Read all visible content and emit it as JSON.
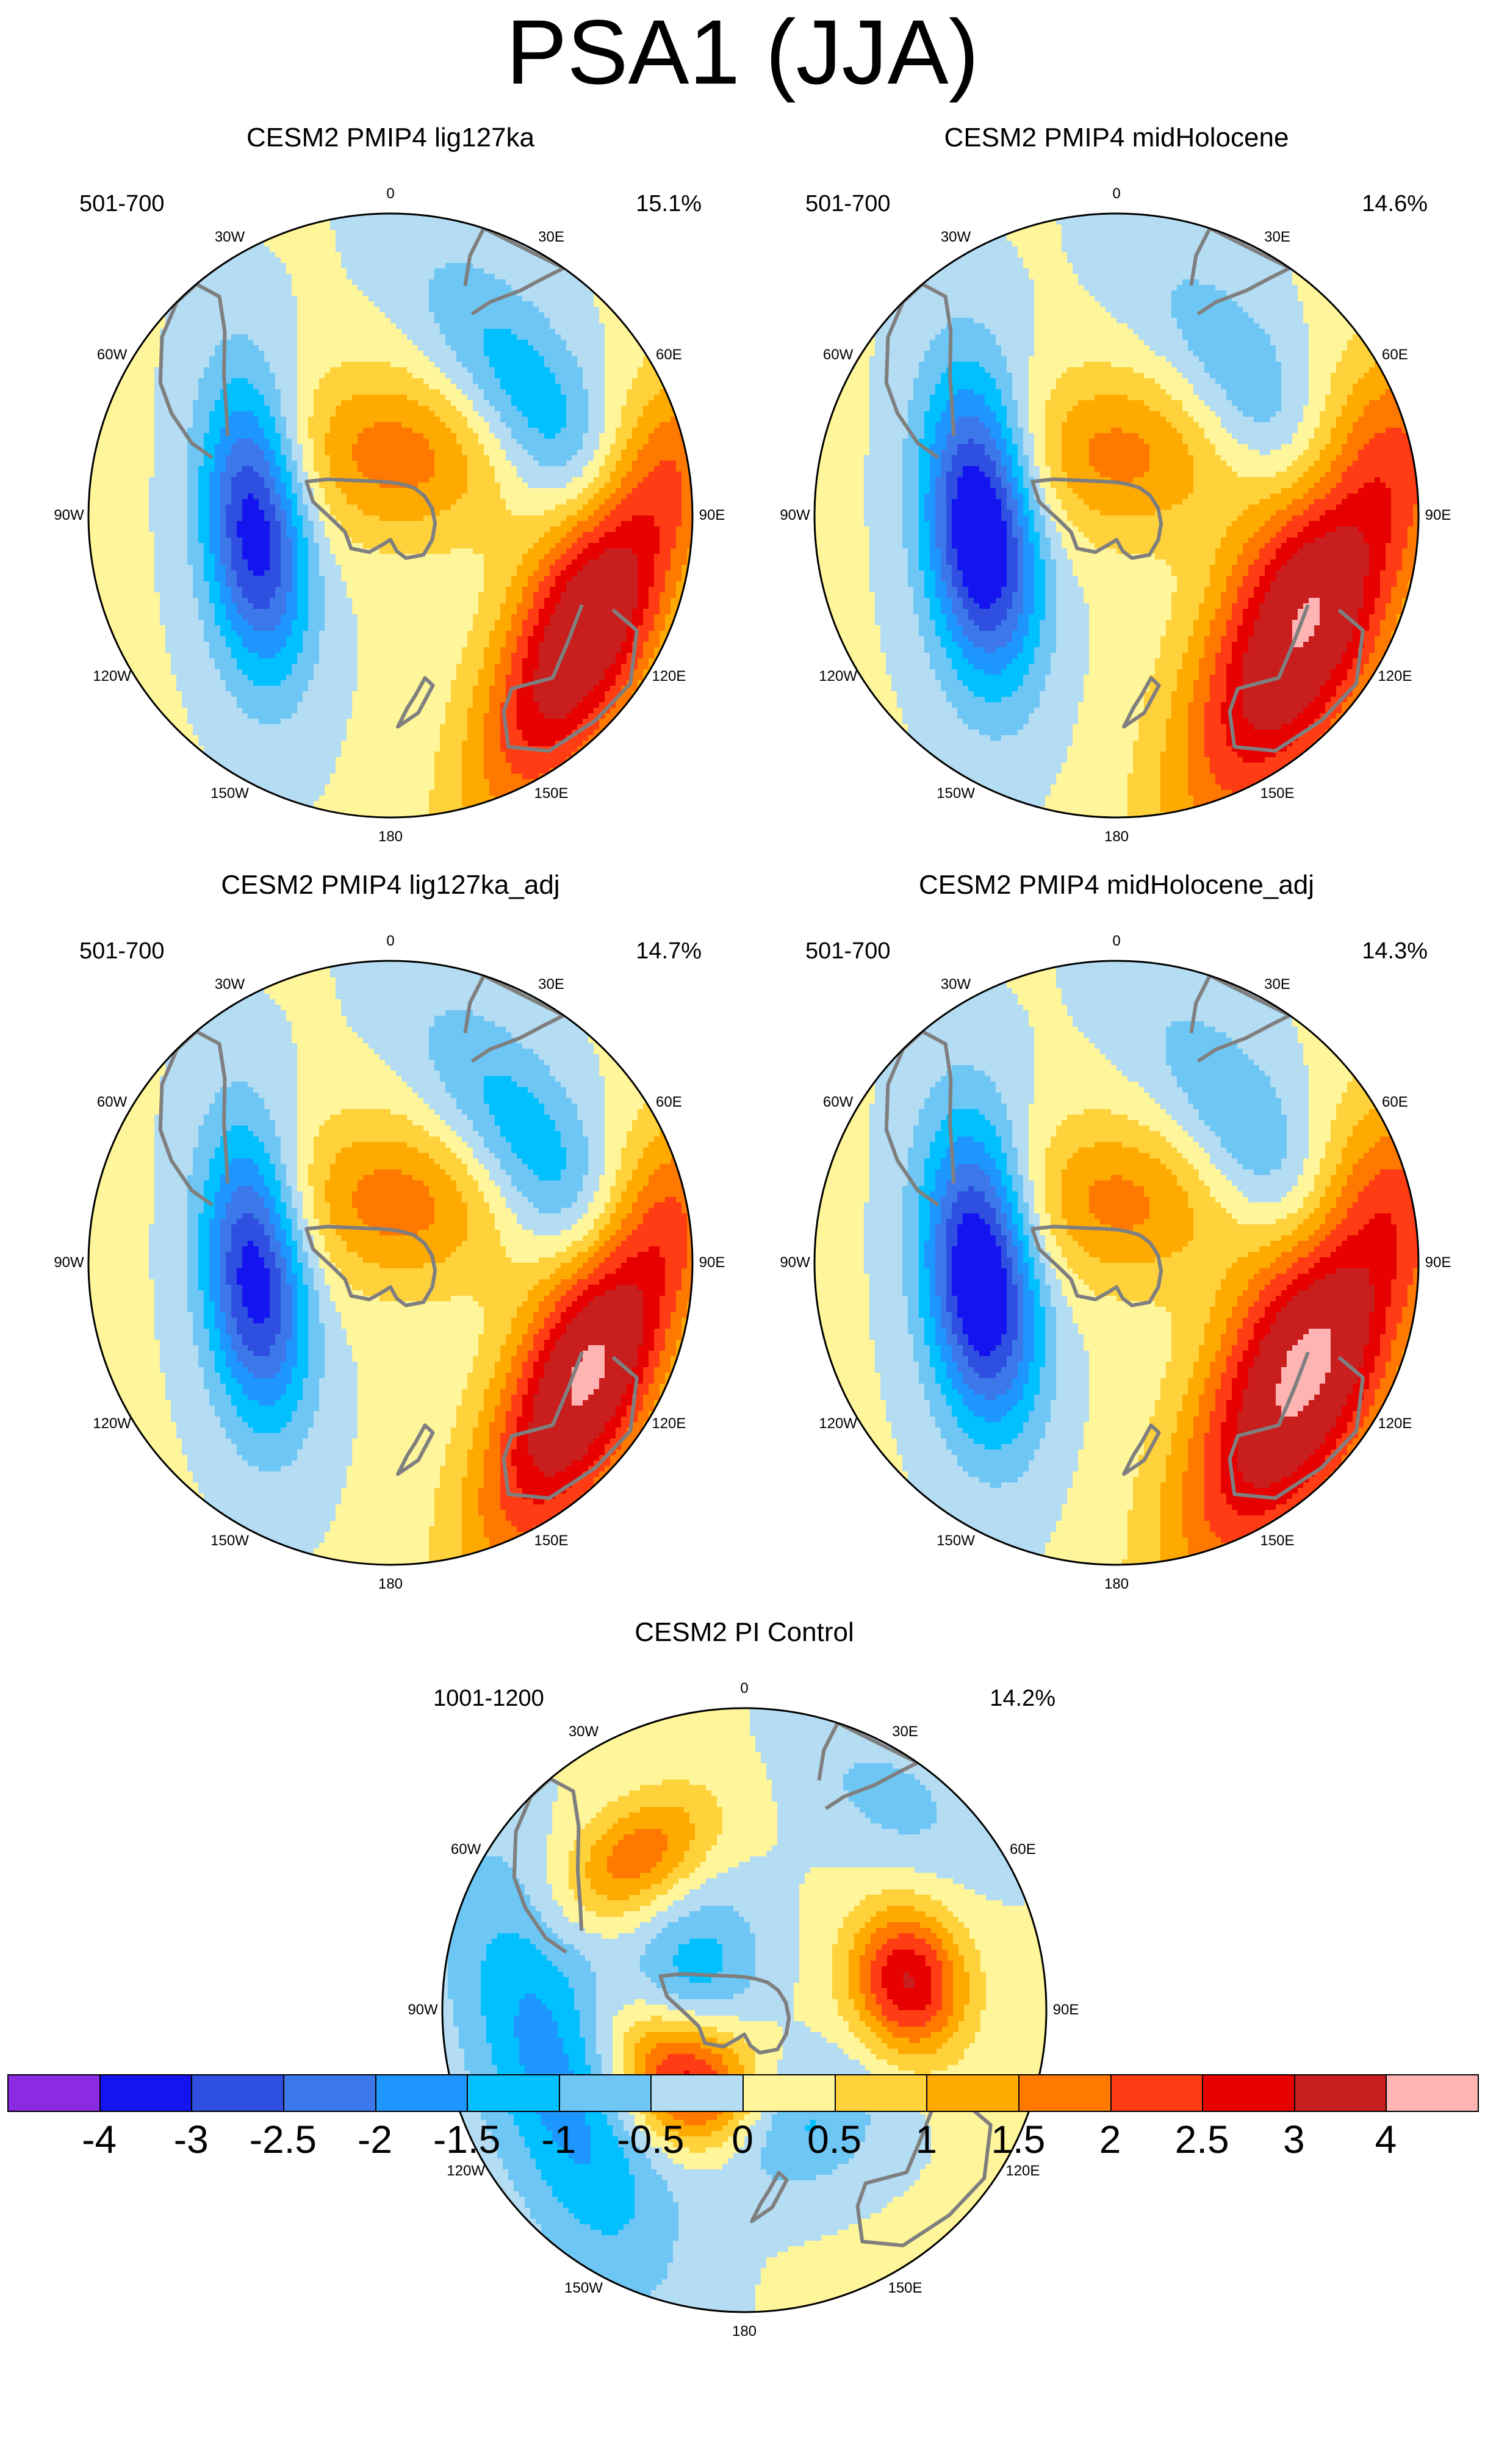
{
  "figure": {
    "title": "PSA1 (JJA)"
  },
  "panels": [
    {
      "title": "CESM2 PMIP4 lig127ka",
      "years": "501-700",
      "variance": "15.1%",
      "fields": [
        {
          "lon": 115,
          "colat": 0.75,
          "amp": 4.0,
          "sx": 0.5,
          "sy": 0.17
        },
        {
          "lon": -95,
          "colat": 0.45,
          "amp": -3.5,
          "sx": 0.34,
          "sy": 0.12
        },
        {
          "lon": 5,
          "colat": 0.2,
          "amp": 1.7,
          "sx": 0.28,
          "sy": 0.2
        },
        {
          "lon": 55,
          "colat": 0.6,
          "amp": -1.6,
          "sx": 0.4,
          "sy": 0.15
        }
      ]
    },
    {
      "title": "CESM2 PMIP4 midHolocene",
      "years": "501-700",
      "variance": "14.6%",
      "fields": [
        {
          "lon": 115,
          "colat": 0.72,
          "amp": 4.1,
          "sx": 0.55,
          "sy": 0.2
        },
        {
          "lon": -95,
          "colat": 0.45,
          "amp": -4.1,
          "sx": 0.35,
          "sy": 0.13
        },
        {
          "lon": 0,
          "colat": 0.2,
          "amp": 1.6,
          "sx": 0.28,
          "sy": 0.2
        },
        {
          "lon": 55,
          "colat": 0.6,
          "amp": -1.2,
          "sx": 0.42,
          "sy": 0.15
        }
      ]
    },
    {
      "title": "CESM2 PMIP4 lig127ka_adj",
      "years": "501-700",
      "variance": "14.7%",
      "fields": [
        {
          "lon": 115,
          "colat": 0.75,
          "amp": 4.2,
          "sx": 0.5,
          "sy": 0.17
        },
        {
          "lon": -95,
          "colat": 0.45,
          "amp": -3.5,
          "sx": 0.34,
          "sy": 0.12
        },
        {
          "lon": 5,
          "colat": 0.2,
          "amp": 1.7,
          "sx": 0.28,
          "sy": 0.2
        },
        {
          "lon": 55,
          "colat": 0.6,
          "amp": -1.6,
          "sx": 0.4,
          "sy": 0.15
        }
      ]
    },
    {
      "title": "CESM2 PMIP4 midHolocene_adj",
      "years": "501-700",
      "variance": "14.3%",
      "fields": [
        {
          "lon": 115,
          "colat": 0.72,
          "amp": 4.3,
          "sx": 0.55,
          "sy": 0.2
        },
        {
          "lon": -95,
          "colat": 0.45,
          "amp": -4.1,
          "sx": 0.35,
          "sy": 0.13
        },
        {
          "lon": 0,
          "colat": 0.2,
          "amp": 1.6,
          "sx": 0.28,
          "sy": 0.2
        },
        {
          "lon": 55,
          "colat": 0.6,
          "amp": -1.3,
          "sx": 0.42,
          "sy": 0.15
        }
      ]
    },
    {
      "title": "CESM2 PI Control",
      "years": "1001-1200",
      "variance": "14.2%",
      "fields": [
        {
          "lon": -135,
          "colat": 0.3,
          "amp": 3.4,
          "sx": 0.2,
          "sy": 0.15
        },
        {
          "lon": 80,
          "colat": 0.55,
          "amp": 3.0,
          "sx": 0.17,
          "sy": 0.13
        },
        {
          "lon": -35,
          "colat": 0.62,
          "amp": 1.8,
          "sx": 0.2,
          "sy": 0.12
        },
        {
          "lon": -110,
          "colat": 0.65,
          "amp": -1.9,
          "sx": 0.5,
          "sy": 0.18
        },
        {
          "lon": -70,
          "colat": 0.2,
          "amp": -1.6,
          "sx": 0.22,
          "sy": 0.15
        },
        {
          "lon": 160,
          "colat": 0.42,
          "amp": -1.3,
          "sx": 0.22,
          "sy": 0.15
        },
        {
          "lon": 35,
          "colat": 0.85,
          "amp": -0.7,
          "sx": 0.25,
          "sy": 0.15
        }
      ]
    }
  ],
  "longitude_labels": [
    "0",
    "30E",
    "60E",
    "90E",
    "120E",
    "150E",
    "180",
    "150W",
    "120W",
    "90W",
    "60W",
    "30W"
  ],
  "chart_data": {
    "type": "heatmap",
    "title": "PSA1 (JJA)",
    "projection": "south polar stereographic",
    "colorbar": {
      "levels": [
        -4,
        -3,
        -2.5,
        -2,
        -1.5,
        -1,
        -0.5,
        0,
        0.5,
        1,
        1.5,
        2,
        2.5,
        3,
        4
      ],
      "labels": [
        "-4",
        "-3",
        "-2.5",
        "-2",
        "-1.5",
        "-1",
        "-0.5",
        "0",
        "0.5",
        "1",
        "1.5",
        "2",
        "2.5",
        "3",
        "4"
      ],
      "colors": [
        "#8a2be2",
        "#1414f0",
        "#2e4fe0",
        "#3c78ea",
        "#1e96ff",
        "#00c0ff",
        "#6ec6f5",
        "#b4dcf2",
        "#fff59a",
        "#ffd23c",
        "#ffaa00",
        "#ff7800",
        "#ff3c14",
        "#e60000",
        "#c81e1e",
        "#ffb4b4"
      ]
    },
    "series": [
      {
        "name": "CESM2 PMIP4 lig127ka",
        "years": "501-700",
        "explained_variance_pct": 15.1
      },
      {
        "name": "CESM2 PMIP4 midHolocene",
        "years": "501-700",
        "explained_variance_pct": 14.6
      },
      {
        "name": "CESM2 PMIP4 lig127ka_adj",
        "years": "501-700",
        "explained_variance_pct": 14.7
      },
      {
        "name": "CESM2 PMIP4 midHolocene_adj",
        "years": "501-700",
        "explained_variance_pct": 14.3
      },
      {
        "name": "CESM2 PI Control",
        "years": "1001-1200",
        "explained_variance_pct": 14.2
      }
    ]
  }
}
